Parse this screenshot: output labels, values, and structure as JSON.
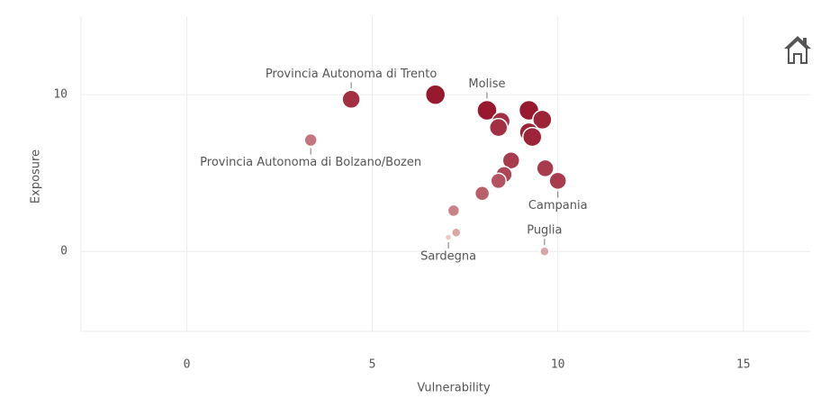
{
  "chart_data": {
    "type": "scatter",
    "x_label": "Vulnerability",
    "y_label": "Exposure",
    "xlim": [
      -2.85,
      16.8
    ],
    "ylim": [
      -5.1,
      15
    ],
    "xticks": [
      0,
      5,
      10,
      15
    ],
    "yticks": [
      0,
      10
    ],
    "grid": true,
    "color_range": [
      "#e9c9c2",
      "#98182e"
    ],
    "x": [
      4.43,
      3.34,
      6.7,
      8.09,
      8.47,
      8.4,
      9.22,
      9.58,
      9.22,
      9.31,
      8.74,
      9.66,
      10.0,
      8.55,
      8.4,
      7.96,
      7.19,
      7.26,
      7.05,
      9.64
    ],
    "y": [
      9.7,
      7.1,
      10.0,
      9.0,
      8.3,
      7.9,
      9.0,
      8.4,
      7.6,
      7.3,
      5.8,
      5.3,
      4.5,
      4.9,
      4.5,
      3.7,
      2.6,
      1.2,
      0.9,
      0.0
    ],
    "sizes": [
      10,
      7,
      11,
      11,
      10,
      10,
      11,
      10.5,
      10.5,
      10.5,
      9.5,
      9.5,
      9.5,
      9,
      8.5,
      8,
      6.5,
      5,
      3.5,
      5
    ],
    "labels": [
      "Provincia Autonoma di Trento",
      "Provincia Autonoma di Bolzano/Bozen",
      null,
      "Molise",
      null,
      null,
      null,
      null,
      null,
      null,
      null,
      null,
      "Campania",
      null,
      null,
      null,
      null,
      null,
      "Sardegna",
      "Puglia"
    ]
  }
}
